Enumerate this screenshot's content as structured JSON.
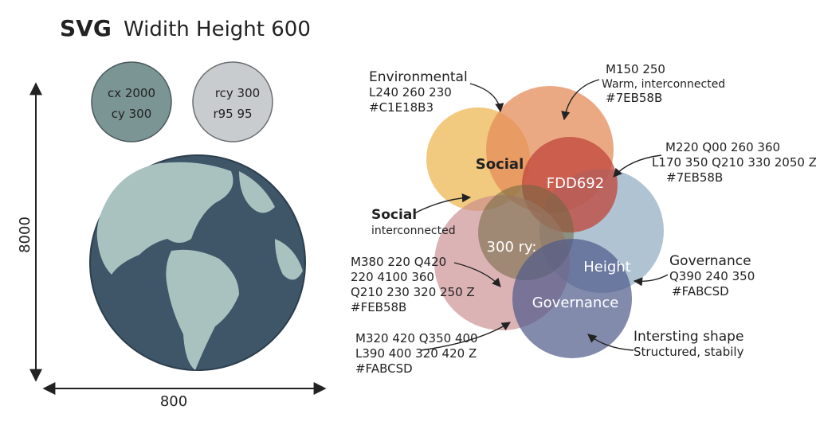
{
  "header": {
    "title": "SVG",
    "subtitle": "Widith Height 600"
  },
  "left": {
    "circles": [
      [
        "cx 2000",
        "cy 300"
      ],
      [
        "rcy 300",
        "r95 95"
      ]
    ],
    "height_label": "8000",
    "width_label": "800"
  },
  "venn": {
    "circle_labels": [
      "Social",
      "FDD692",
      "300 ry:",
      "Height",
      "Governance"
    ],
    "callouts": [
      {
        "title": "Environmental",
        "lines": [
          "L240 260 230",
          "#C1E18B3"
        ]
      },
      {
        "lines": [
          "M150 250",
          "Warm, interconnected",
          "#7EB58B"
        ]
      },
      {
        "lines": [
          "M220 Q00 260 360",
          "L170 350 Q210 330 2050 Z",
          "#7EB58B"
        ]
      },
      {
        "title": "Social",
        "lines": [
          "interconnected"
        ]
      },
      {
        "lines": [
          "M380 220 Q420",
          "220 4100 360",
          "Q210 230 320 250 Z",
          "#FEB58B"
        ]
      },
      {
        "lines": [
          "M320 420 Q350 400",
          "L390 400 320 420 Z",
          "#FABCSD"
        ]
      },
      {
        "title": "Governance",
        "lines": [
          "Q390 240 350",
          "#FABCSD"
        ]
      },
      {
        "title": "Intersting shape",
        "lines": [
          "Structured, stabily"
        ]
      }
    ]
  }
}
